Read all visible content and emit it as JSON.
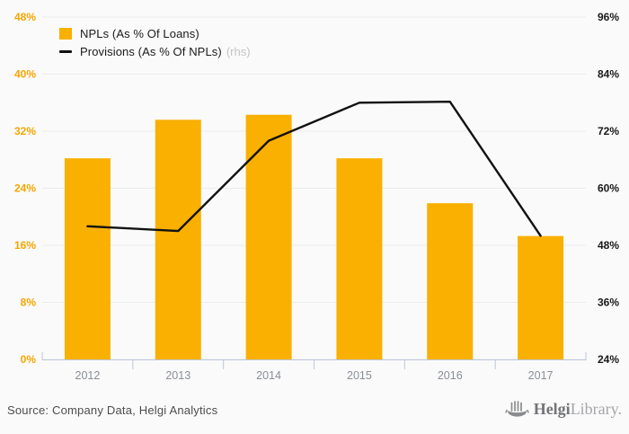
{
  "chart_data": {
    "type": "bar",
    "subtype": "bar-and-line-dual-axis",
    "categories": [
      "2012",
      "2013",
      "2014",
      "2015",
      "2016",
      "2017"
    ],
    "series": [
      {
        "name": "NPLs (As % Of Loans)",
        "type": "bar",
        "axis": "left",
        "color": "#F9B000",
        "values": [
          28.2,
          33.6,
          34.3,
          28.2,
          21.9,
          17.3
        ]
      },
      {
        "name": "Provisions (As % Of NPLs)",
        "type": "line",
        "axis": "right",
        "color": "#111111",
        "values": [
          52,
          51,
          70,
          78,
          78.2,
          50
        ]
      }
    ],
    "legend_rhs_suffix": "(rhs)",
    "left_axis": {
      "min": 0,
      "max": 48,
      "step": 8,
      "unit": "%",
      "color": "#F7A600",
      "ticks": [
        "0%",
        "8%",
        "16%",
        "24%",
        "32%",
        "40%",
        "48%"
      ]
    },
    "right_axis": {
      "min": 24,
      "max": 96,
      "step": 12,
      "unit": "%",
      "color": "#1a1a1a",
      "ticks": [
        "24%",
        "36%",
        "48%",
        "60%",
        "72%",
        "84%",
        "96%"
      ]
    },
    "grid": true,
    "legend_position": "top-left",
    "colors": {
      "background": "#fafafa",
      "gridline": "#ececec",
      "axis_line": "#bcc6da",
      "x_labels": "#8a8f98"
    }
  },
  "legend": {
    "bar_label": "NPLs (As % Of Loans)",
    "line_label": "Provisions (As % Of NPLs)",
    "line_suffix": "(rhs)"
  },
  "footer": {
    "source": "Source: Company Data, Helgi Analytics",
    "logo_bold": "Helgi",
    "logo_light": "Library."
  }
}
